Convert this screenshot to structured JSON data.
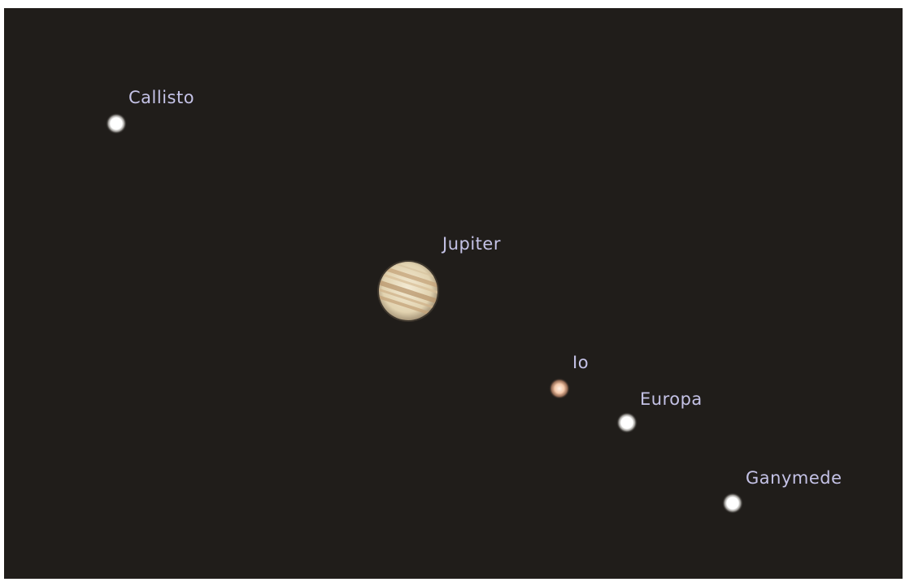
{
  "bodies": [
    {
      "label": "Callisto"
    },
    {
      "label": "Jupiter"
    },
    {
      "label": "Io"
    },
    {
      "label": "Europa"
    },
    {
      "label": "Ganymede"
    }
  ]
}
